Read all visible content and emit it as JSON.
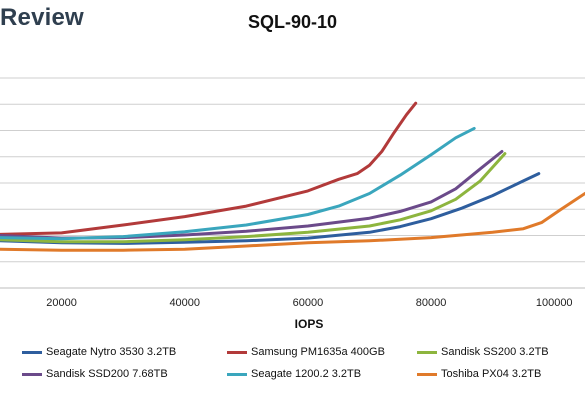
{
  "watermark": "Review",
  "chart_data": {
    "type": "line",
    "title": "SQL-90-10",
    "xlabel": "IOPS",
    "ylabel": "",
    "xlim": [
      10000,
      105000
    ],
    "x_ticks": [
      20000,
      40000,
      60000,
      80000,
      100000
    ],
    "grid": true,
    "legend_position": "bottom",
    "series": [
      {
        "name": "Seagate Nytro 3530 3.2TB",
        "color": "#2e5e9e",
        "x": [
          10000,
          20000,
          30000,
          40000,
          50000,
          60000,
          70000,
          75000,
          80000,
          85000,
          90000,
          95000,
          97500
        ],
        "y": [
          9.0,
          8.6,
          8.5,
          8.7,
          9.0,
          9.5,
          10.6,
          11.7,
          13.2,
          15.2,
          17.6,
          20.4,
          21.8
        ]
      },
      {
        "name": "Samsung PM1635a 400GB",
        "color": "#b23a3a",
        "x": [
          10000,
          20000,
          30000,
          40000,
          50000,
          60000,
          65000,
          68000,
          70000,
          72000,
          74000,
          76000,
          77500
        ],
        "y": [
          10.2,
          10.5,
          12.0,
          13.6,
          15.6,
          18.5,
          20.7,
          21.8,
          23.4,
          26.0,
          29.6,
          33.0,
          35.2
        ]
      },
      {
        "name": "Sandisk SS200 3.2TB",
        "color": "#8db53e",
        "x": [
          10000,
          20000,
          30000,
          40000,
          50000,
          60000,
          70000,
          75000,
          80000,
          84000,
          88000,
          92000
        ],
        "y": [
          9.2,
          8.8,
          8.8,
          9.2,
          9.8,
          10.6,
          11.8,
          13.0,
          14.7,
          16.9,
          20.4,
          25.6
        ]
      },
      {
        "name": "Sandisk SSD200 7.68TB",
        "color": "#6b4a8a",
        "x": [
          10000,
          20000,
          30000,
          40000,
          50000,
          60000,
          70000,
          75000,
          80000,
          84000,
          88000,
          91500
        ],
        "y": [
          10.0,
          9.5,
          9.6,
          10.1,
          10.8,
          11.8,
          13.3,
          14.6,
          16.4,
          18.9,
          22.7,
          26.0
        ]
      },
      {
        "name": "Seagate 1200.2 3.2TB",
        "color": "#3aa6bd",
        "x": [
          10000,
          20000,
          30000,
          40000,
          50000,
          60000,
          65000,
          70000,
          75000,
          80000,
          84000,
          87000
        ],
        "y": [
          9.6,
          9.4,
          9.8,
          10.7,
          12.0,
          14.0,
          15.6,
          18.0,
          21.5,
          25.4,
          28.6,
          30.4
        ]
      },
      {
        "name": "Toshiba PX04 3.2TB",
        "color": "#e07a2a",
        "x": [
          10000,
          20000,
          30000,
          40000,
          50000,
          60000,
          70000,
          80000,
          90000,
          95000,
          98000,
          101000,
          105000
        ],
        "y": [
          7.4,
          7.2,
          7.2,
          7.4,
          8.0,
          8.6,
          9.0,
          9.6,
          10.6,
          11.3,
          12.5,
          14.9,
          18.0
        ]
      }
    ]
  }
}
